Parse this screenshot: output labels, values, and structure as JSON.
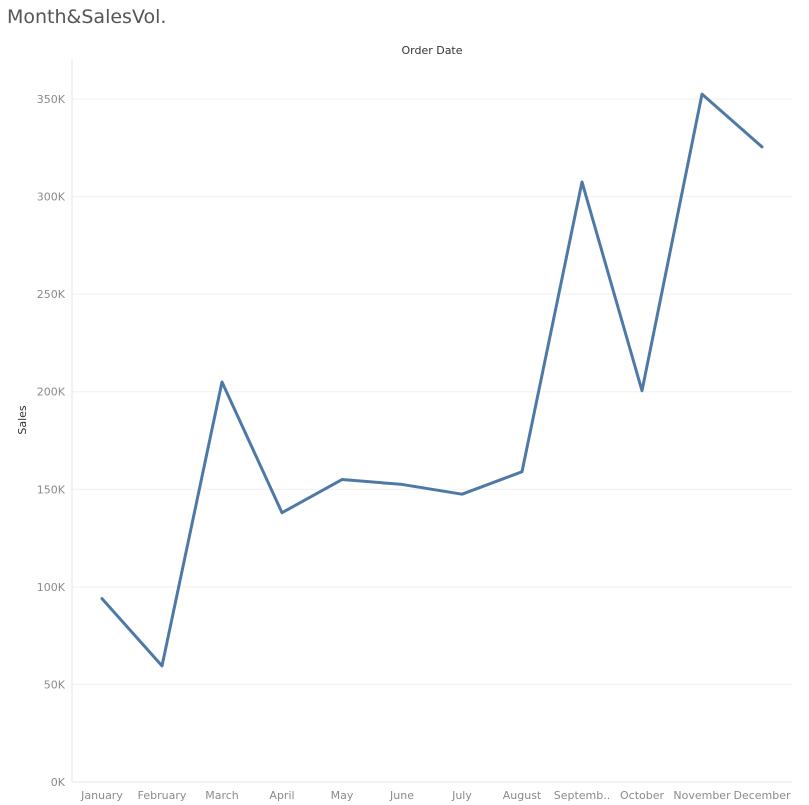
{
  "page": {
    "title": "Month&SalesVol."
  },
  "chart_data": {
    "type": "line",
    "title": "Month&SalesVol.",
    "column_header": "Order Date",
    "xlabel": "",
    "ylabel": "Sales",
    "categories": [
      "January",
      "February",
      "March",
      "April",
      "May",
      "June",
      "July",
      "August",
      "Septemb..",
      "October",
      "November",
      "December"
    ],
    "series": [
      {
        "values": [
          94000,
          59500,
          205000,
          138000,
          155000,
          152500,
          147500,
          159000,
          307500,
          200500,
          352500,
          325500
        ],
        "color": "#4e79a7"
      }
    ],
    "ylim": [
      0,
      370000
    ],
    "yticks": [
      0,
      50000,
      100000,
      150000,
      200000,
      250000,
      300000,
      350000
    ],
    "ytick_labels": [
      "0K",
      "50K",
      "100K",
      "150K",
      "200K",
      "250K",
      "300K",
      "350K"
    ],
    "grid": true,
    "legend": "none"
  }
}
